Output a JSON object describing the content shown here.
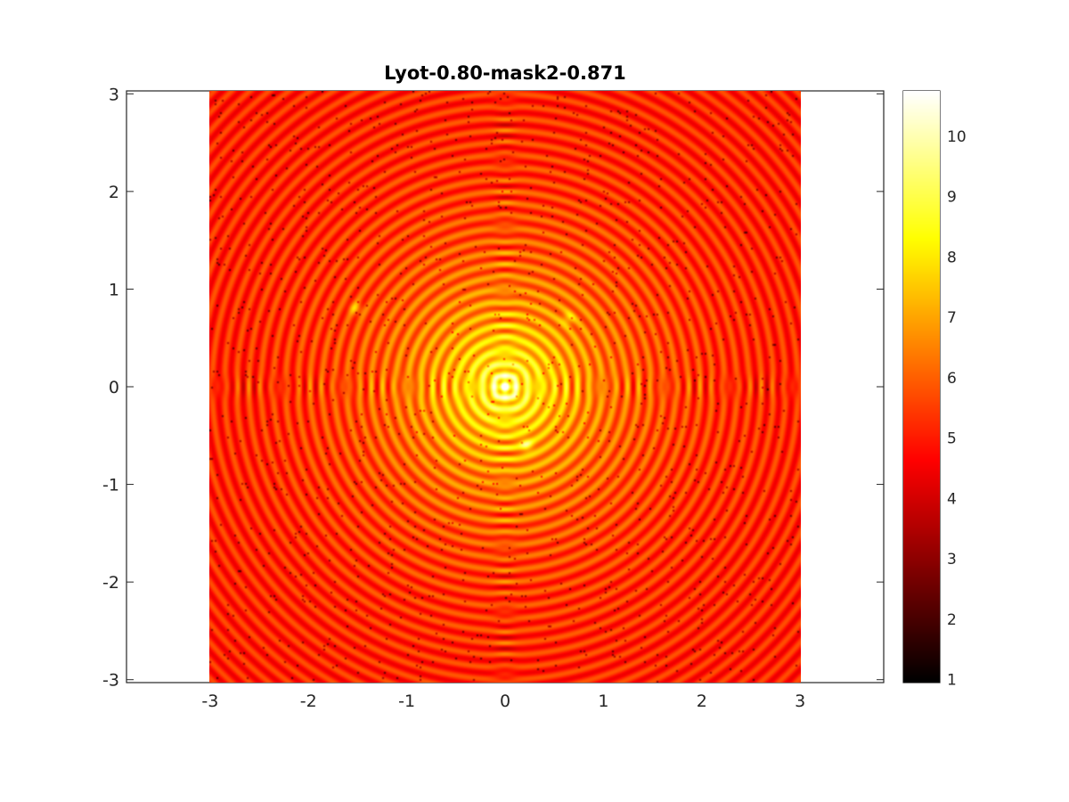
{
  "chart_data": {
    "type": "heatmap",
    "title": "Lyot-0.80-mask2-0.871",
    "xlabel": "",
    "ylabel": "",
    "xlim": [
      -3.85,
      3.85
    ],
    "ylim": [
      -3.03,
      3.03
    ],
    "image_extent": {
      "x": [
        -3.03,
        3.03
      ],
      "y": [
        -3.03,
        3.03
      ]
    },
    "x_ticks": [
      "-3",
      "-2",
      "-1",
      "0",
      "1",
      "2",
      "3"
    ],
    "x_tick_values": [
      -3,
      -2,
      -1,
      0,
      1,
      2,
      3
    ],
    "y_ticks": [
      "3",
      "2",
      "1",
      "0",
      "-1",
      "-2",
      "-3"
    ],
    "y_tick_values": [
      3,
      2,
      1,
      0,
      -1,
      -2,
      -3
    ],
    "colormap": "hot",
    "colorbar": {
      "range": [
        0.95,
        10.75
      ],
      "ticks": [
        "10",
        "9",
        "8",
        "7",
        "6",
        "5",
        "4",
        "3",
        "2",
        "1"
      ],
      "tick_values": [
        10,
        9,
        8,
        7,
        6,
        5,
        4,
        3,
        2,
        1
      ]
    },
    "peak_value": 10.6,
    "background_level": 5.0,
    "bright_spots": [
      {
        "x": -1.53,
        "y": 0.8,
        "value": 7.2
      },
      {
        "x": 0.65,
        "y": 0.7,
        "value": 7.0
      },
      {
        "x": 0.22,
        "y": -0.6,
        "value": 7.5
      }
    ],
    "grid": false,
    "legend": "none"
  }
}
